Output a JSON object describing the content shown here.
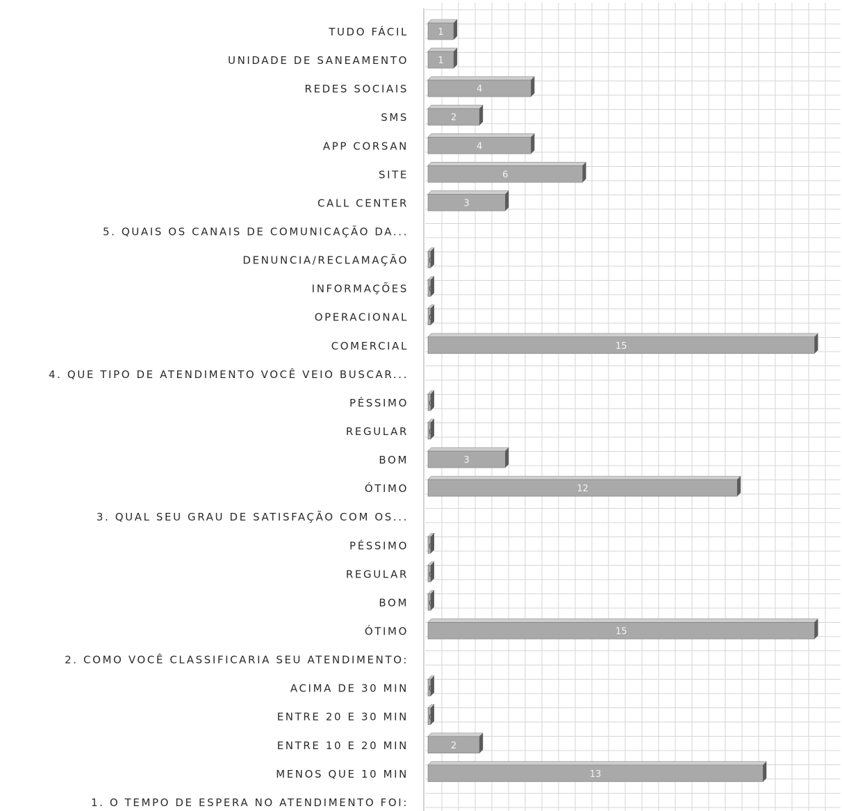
{
  "chart_data": {
    "type": "bar",
    "orientation": "horizontal",
    "title": "",
    "xlabel": "",
    "ylabel": "",
    "xlim": [
      0,
      15
    ],
    "grid": true,
    "legend": "none",
    "categories": [
      "TUDO FÁCIL",
      "UNIDADE DE SANEAMENTO",
      "REDES SOCIAIS",
      "SMS",
      "APP CORSAN",
      "SITE",
      "CALL CENTER",
      "5. QUAIS OS CANAIS DE COMUNICAÇÃO DA...",
      "DENUNCIA/RECLAMAÇÃO",
      "INFORMAÇÕES",
      "OPERACIONAL",
      "COMERCIAL",
      "4. QUE TIPO DE ATENDIMENTO VOCÊ VEIO BUSCAR...",
      "PÉSSIMO",
      "REGULAR",
      "BOM",
      "ÓTIMO",
      "3. QUAL SEU GRAU DE SATISFAÇÃO COM OS...",
      "PÉSSIMO",
      "REGULAR",
      "BOM",
      "ÓTIMO",
      "2. COMO VOCÊ CLASSIFICARIA SEU ATENDIMENTO:",
      "ACIMA DE 30 MIN",
      "ENTRE 20 E 30 MIN",
      "ENTRE 10 E 20 MIN",
      "MENOS QUE 10 MIN",
      "1. O TEMPO DE ESPERA NO ATENDIMENTO FOI:"
    ],
    "values": [
      1,
      1,
      4,
      2,
      4,
      6,
      3,
      null,
      0,
      0,
      0,
      15,
      null,
      0,
      0,
      3,
      12,
      null,
      0,
      0,
      0,
      15,
      null,
      0,
      0,
      2,
      13,
      null
    ],
    "data_labels": [
      "1",
      "1",
      "4",
      "2",
      "4",
      "6",
      "3",
      "",
      "0",
      "0",
      "0",
      "15",
      "",
      "0",
      "0",
      "3",
      "12",
      "",
      "0",
      "0",
      "0",
      "15",
      "",
      "0",
      "0",
      "2",
      "13",
      ""
    ],
    "colors": {
      "bar": "#a9a9a9",
      "bar_side": "#5a5a5a",
      "bar_top": "#cfcfcf",
      "grid": "#d6d6d6",
      "label": "#2a2a2a",
      "value_label": "#f4f4f4"
    }
  }
}
